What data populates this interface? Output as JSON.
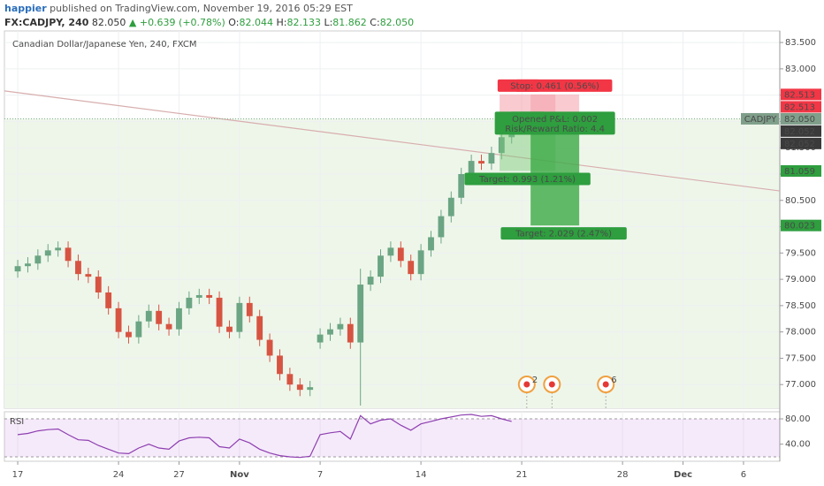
{
  "header": {
    "author": "happier",
    "published": "published on TradingView.com, November 19, 2016 05:29 EST"
  },
  "quote": {
    "symbol": "FX:CADJPY, 240",
    "last": "82.050",
    "change": "▲ +0.639 (+0.78%)",
    "open_label": "O:",
    "open": "82.044",
    "high_label": "H:",
    "high": "82.133",
    "low_label": "L:",
    "low": "81.862",
    "close_label": "C:",
    "close": "82.050"
  },
  "chart_data": {
    "type": "candlestick",
    "title": "Canadian Dollar/Japanese Yen, 240, FXCM",
    "colors": {
      "up": "#6ba583",
      "down": "#d75442"
    },
    "x": [
      0,
      0.5,
      1,
      1.5,
      2,
      2.5,
      3,
      3.5,
      4,
      4.5,
      5,
      5.5,
      6,
      6.5,
      7,
      7.5,
      8,
      8.5,
      9,
      9.5,
      10,
      10.5,
      11,
      11.5,
      12,
      12.5,
      13,
      13.5,
      14,
      14.5,
      15,
      15.5,
      16,
      16.5,
      17,
      17.5,
      18,
      18.5,
      19,
      19.5,
      20,
      20.5,
      21,
      21.5,
      22,
      22.5,
      23,
      23.5,
      24,
      24.5
    ],
    "open": [
      79.15,
      79.25,
      79.3,
      79.45,
      79.55,
      79.6,
      79.35,
      79.1,
      79.05,
      78.75,
      78.45,
      78.0,
      77.9,
      78.2,
      78.4,
      78.15,
      78.05,
      78.45,
      78.65,
      78.7,
      78.65,
      78.1,
      78.0,
      78.55,
      78.3,
      77.85,
      77.55,
      77.2,
      77.0,
      76.9,
      77.8,
      77.95,
      78.05,
      78.15,
      77.8,
      78.9,
      79.05,
      79.45,
      79.6,
      79.35,
      79.1,
      79.55,
      79.8,
      80.2,
      80.55,
      81.0,
      81.25,
      81.2,
      81.4,
      81.7
    ],
    "high": [
      79.37,
      79.42,
      79.57,
      79.67,
      79.72,
      79.72,
      79.47,
      79.22,
      79.17,
      78.87,
      78.57,
      78.12,
      78.32,
      78.52,
      78.52,
      78.27,
      78.57,
      78.77,
      78.82,
      78.82,
      78.77,
      78.22,
      78.67,
      78.67,
      78.42,
      77.97,
      77.67,
      77.32,
      77.12,
      77.07,
      78.07,
      78.17,
      78.27,
      78.27,
      79.2,
      79.17,
      79.57,
      79.72,
      79.72,
      79.47,
      79.67,
      79.92,
      80.32,
      80.67,
      81.12,
      81.37,
      81.37,
      81.52,
      81.82,
      82.13
    ],
    "low": [
      79.03,
      79.13,
      79.18,
      79.33,
      79.43,
      79.23,
      78.98,
      78.93,
      78.63,
      78.33,
      77.88,
      77.78,
      77.78,
      78.08,
      78.03,
      77.93,
      77.93,
      78.33,
      78.53,
      78.53,
      77.98,
      77.88,
      77.88,
      78.18,
      77.73,
      77.43,
      77.08,
      76.88,
      76.78,
      76.78,
      77.68,
      77.83,
      77.93,
      77.68,
      76.6,
      78.78,
      78.93,
      79.33,
      79.23,
      78.98,
      78.98,
      79.43,
      79.68,
      80.08,
      80.43,
      80.88,
      81.08,
      81.08,
      81.28,
      81.58
    ],
    "close": [
      79.25,
      79.3,
      79.45,
      79.55,
      79.6,
      79.35,
      79.1,
      79.05,
      78.75,
      78.45,
      78.0,
      77.9,
      78.2,
      78.4,
      78.15,
      78.05,
      78.45,
      78.65,
      78.7,
      78.65,
      78.1,
      78.0,
      78.55,
      78.3,
      77.85,
      77.55,
      77.2,
      77.0,
      76.9,
      76.95,
      77.95,
      78.05,
      78.15,
      77.8,
      78.9,
      79.05,
      79.45,
      79.6,
      79.35,
      79.1,
      79.55,
      79.8,
      80.2,
      80.55,
      81.0,
      81.25,
      81.2,
      81.4,
      81.7,
      82.05
    ],
    "xlim": [
      -0.66,
      37.8
    ],
    "xticks": [
      {
        "value": 0,
        "label": "17"
      },
      {
        "value": 5,
        "label": "24"
      },
      {
        "value": 8,
        "label": "27"
      },
      {
        "value": 11,
        "label": "Nov"
      },
      {
        "value": 15,
        "label": "7"
      },
      {
        "value": 20,
        "label": "14"
      },
      {
        "value": 25,
        "label": "21"
      },
      {
        "value": 30,
        "label": "28"
      },
      {
        "value": 33,
        "label": "Dec"
      },
      {
        "value": 36,
        "label": "6"
      }
    ],
    "ylim": [
      76.55,
      83.72
    ],
    "yticks": [
      {
        "value": 77,
        "label": "77.000"
      },
      {
        "value": 77.5,
        "label": "77.500"
      },
      {
        "value": 78,
        "label": "78.000"
      },
      {
        "value": 78.5,
        "label": "78.500"
      },
      {
        "value": 79,
        "label": "79.000"
      },
      {
        "value": 79.5,
        "label": "79.500"
      },
      {
        "value": 80,
        "label": "80.000"
      },
      {
        "value": 80.5,
        "label": "80.500"
      },
      {
        "value": 81,
        "label": "81.000"
      },
      {
        "value": 81.5,
        "label": "81.500"
      },
      {
        "value": 82,
        "label": "82.000"
      },
      {
        "value": 82.5,
        "label": "82.500"
      },
      {
        "value": 83,
        "label": "83.000"
      },
      {
        "value": 83.5,
        "label": "83.500"
      }
    ],
    "grid": true,
    "last_price": 82.05,
    "trendline": {
      "x": [
        -0.66,
        37.8
      ],
      "y": [
        82.58,
        80.68
      ],
      "color": "#d8aeae"
    },
    "positions": [
      {
        "x": [
          23.9,
          26.67
        ],
        "entry": 82.052,
        "stop": 82.513,
        "target": 81.059,
        "labels": {
          "pnl": "Opene",
          "ratio": "Risk/R",
          "stop": "Sto",
          "target": "Target: 0.993 (1.21%)"
        }
      },
      {
        "x": [
          25.44,
          27.85
        ],
        "entry": 82.052,
        "stop": 82.513,
        "target": 80.023,
        "labels": {
          "pnl": "Opened P&L: 0.002",
          "ratio": "Risk/Reward Ratio: 4.4",
          "stop": "Stop: 0.461 (0.56%)",
          "target": "Target: 2.029 (2.47%)"
        }
      }
    ],
    "price_tags": [
      {
        "name": "CADJPY",
        "value": 82.05,
        "value_label": "82.050",
        "color": "#7f9f8a"
      },
      {
        "value": 82.513,
        "value_label": "82.513",
        "color": "#f23645"
      },
      {
        "value": 82.513,
        "value_label": "82.513",
        "color": "#f23645"
      },
      {
        "value": 82.052,
        "value_label": "82.052",
        "color": "#3a3a3a"
      },
      {
        "value": 82.052,
        "value_label": "82.052",
        "color": "#3a3a3a"
      },
      {
        "value": 81.059,
        "value_label": "81.059",
        "color": "#2e9e3e"
      },
      {
        "value": 80.023,
        "value_label": "80.023",
        "color": "#2e9e3e"
      }
    ],
    "events": [
      {
        "x": 25.25,
        "label": "2"
      },
      {
        "x": 26.5
      },
      {
        "x": 29.17,
        "label": "6"
      }
    ],
    "rsi": {
      "title": "RSI",
      "color": "#8e3fb0",
      "values": [
        55,
        57,
        61,
        63,
        64,
        55,
        47,
        46,
        38,
        32,
        26,
        25,
        34,
        40,
        34,
        32,
        45,
        50,
        51,
        50,
        36,
        34,
        48,
        42,
        32,
        26,
        22,
        20,
        19,
        21,
        55,
        58,
        60,
        48,
        85,
        72,
        78,
        80,
        70,
        62,
        72,
        76,
        80,
        83,
        86,
        87,
        84,
        85,
        80,
        76
      ],
      "ylim": [
        13,
        91.2
      ],
      "yticks": [
        {
          "value": 80,
          "label": "80.00"
        },
        {
          "value": 40,
          "label": "40.00"
        }
      ],
      "bands": [
        80,
        20
      ]
    }
  }
}
